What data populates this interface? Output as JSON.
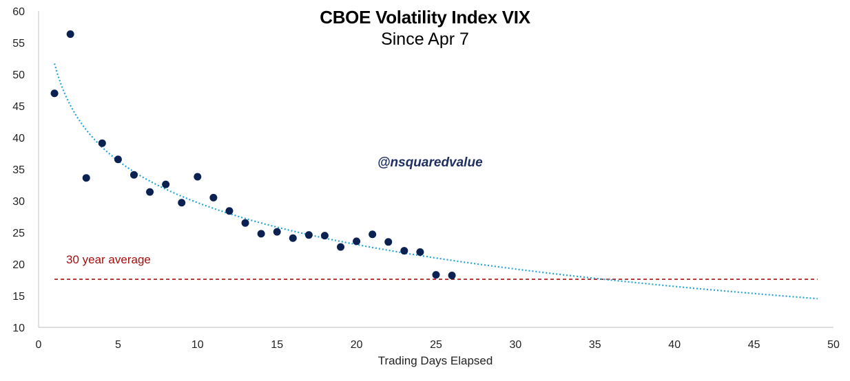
{
  "chart_data": {
    "type": "scatter",
    "title": "CBOE Volatility Index VIX",
    "subtitle": "Since Apr 7",
    "xlabel": "Trading Days Elapsed",
    "ylabel": "",
    "xlim": [
      0,
      50
    ],
    "ylim": [
      10,
      60
    ],
    "x_ticks": [
      0,
      5,
      10,
      15,
      20,
      25,
      30,
      35,
      40,
      45,
      50
    ],
    "y_ticks": [
      10,
      15,
      20,
      25,
      30,
      35,
      40,
      45,
      50,
      55,
      60
    ],
    "grid": false,
    "x": [
      1,
      2,
      3,
      4,
      5,
      6,
      7,
      8,
      9,
      10,
      11,
      12,
      13,
      14,
      15,
      16,
      17,
      18,
      19,
      20,
      21,
      22,
      23,
      24,
      25,
      26
    ],
    "y": [
      46.98,
      56.35,
      33.62,
      39.11,
      36.55,
      34.1,
      31.4,
      32.6,
      29.7,
      33.8,
      30.5,
      28.4,
      26.5,
      24.8,
      25.1,
      24.1,
      24.6,
      24.5,
      22.7,
      23.6,
      24.7,
      23.5,
      22.1,
      21.9,
      18.3,
      18.2
    ],
    "trend": {
      "type": "log",
      "x_range": [
        1,
        49
      ],
      "coef_a": 51.7,
      "coef_b": -9.55,
      "color": "#21a3d6"
    },
    "average_line": {
      "value": 17.6,
      "label": "30 year average",
      "color": "#a50d0d"
    },
    "point_color": "#0a2152",
    "watermark": "@nsquaredvalue"
  }
}
